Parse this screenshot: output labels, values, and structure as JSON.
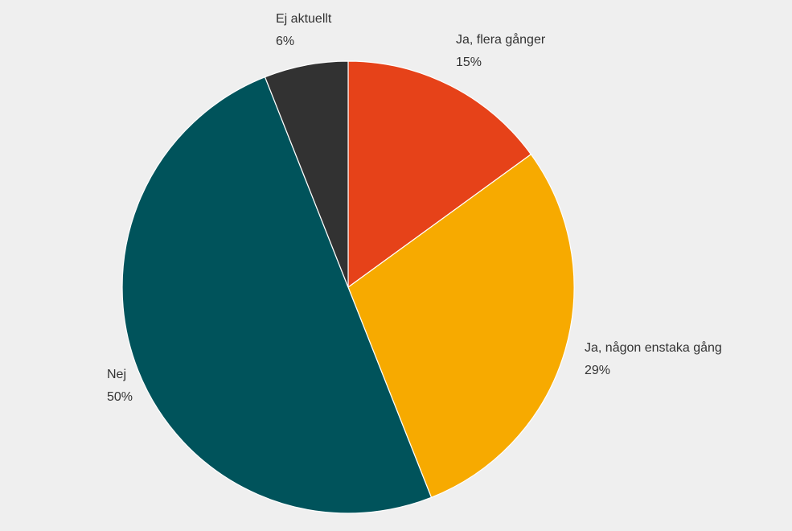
{
  "chart_data": {
    "type": "pie",
    "categories": [
      "Ja, flera gånger",
      "Ja, någon enstaka gång",
      "Nej",
      "Ej aktuellt"
    ],
    "values": [
      15,
      29,
      50,
      6
    ],
    "value_labels": [
      "15%",
      "29%",
      "50%",
      "6%"
    ],
    "colors": [
      "#e64219",
      "#f7aa00",
      "#00535b",
      "#323232"
    ]
  }
}
